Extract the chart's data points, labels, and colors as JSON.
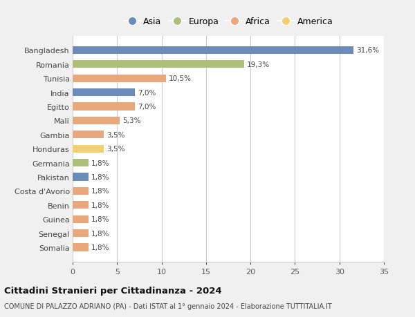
{
  "countries": [
    "Bangladesh",
    "Romania",
    "Tunisia",
    "India",
    "Egitto",
    "Mali",
    "Gambia",
    "Honduras",
    "Germania",
    "Pakistan",
    "Costa d'Avorio",
    "Benin",
    "Guinea",
    "Senegal",
    "Somalia"
  ],
  "values": [
    31.6,
    19.3,
    10.5,
    7.0,
    7.0,
    5.3,
    3.5,
    3.5,
    1.8,
    1.8,
    1.8,
    1.8,
    1.8,
    1.8,
    1.8
  ],
  "labels": [
    "31,6%",
    "19,3%",
    "10,5%",
    "7,0%",
    "7,0%",
    "5,3%",
    "3,5%",
    "3,5%",
    "1,8%",
    "1,8%",
    "1,8%",
    "1,8%",
    "1,8%",
    "1,8%",
    "1,8%"
  ],
  "continents": [
    "Asia",
    "Europa",
    "Africa",
    "Asia",
    "Africa",
    "Africa",
    "Africa",
    "America",
    "Europa",
    "Asia",
    "Africa",
    "Africa",
    "Africa",
    "Africa",
    "Africa"
  ],
  "continent_colors": {
    "Asia": "#6b8cba",
    "Europa": "#adc07a",
    "Africa": "#e8a87c",
    "America": "#f0d070"
  },
  "legend_order": [
    "Asia",
    "Europa",
    "Africa",
    "America"
  ],
  "legend_colors": {
    "Asia": "#6b8cba",
    "Europa": "#adc07a",
    "Africa": "#e8a87c",
    "America": "#f0d070"
  },
  "title": "Cittadini Stranieri per Cittadinanza - 2024",
  "subtitle": "COMUNE DI PALAZZO ADRIANO (PA) - Dati ISTAT al 1° gennaio 2024 - Elaborazione TUTTITALIA.IT",
  "xlim": [
    0,
    35
  ],
  "xticks": [
    0,
    5,
    10,
    15,
    20,
    25,
    30,
    35
  ],
  "background_color": "#f0f0f0",
  "bar_background_color": "#ffffff",
  "grid_color": "#cccccc"
}
